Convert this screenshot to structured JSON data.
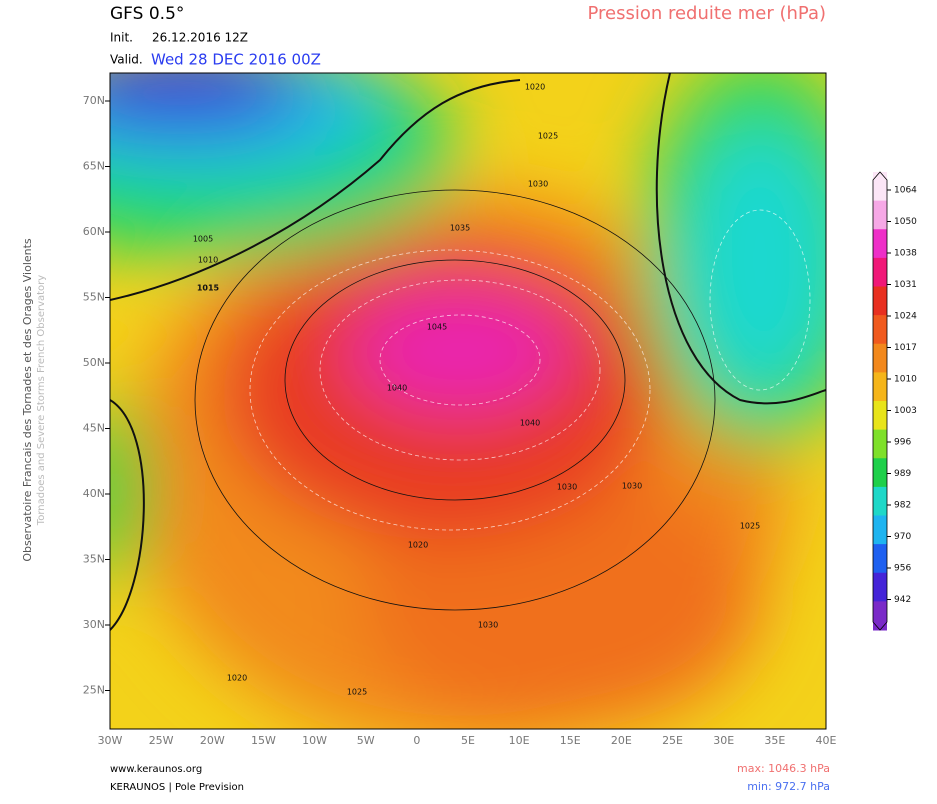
{
  "header": {
    "model": "GFS 0.5°",
    "init_label": "Init.",
    "init_value": "26.12.2016 12Z",
    "valid_label": "Valid.",
    "valid_value": "Wed 28 DEC 2016 00Z",
    "title": "Pression reduite mer (hPa)"
  },
  "side_text": {
    "main": "Observatoire Francais des Tornades et des Orages Violents",
    "sub": "Tornadoes and Severe Storms French Observatory"
  },
  "map": {
    "lat_labels": [
      "70N",
      "65N",
      "60N",
      "55N",
      "50N",
      "45N",
      "40N",
      "35N",
      "30N",
      "25N"
    ],
    "lon_labels": [
      "30W",
      "25W",
      "20W",
      "15W",
      "10W",
      "5W",
      "0",
      "5E",
      "10E",
      "15E",
      "20E",
      "25E",
      "30E",
      "35E",
      "40E"
    ],
    "contour_labels": [
      1020,
      1025,
      1030,
      1035,
      1005,
      1010,
      1015,
      1045,
      1040,
      1040,
      1030,
      1030,
      1020,
      1030,
      1025,
      1020,
      1025
    ]
  },
  "colorbar": {
    "levels": [
      1064,
      1050,
      1038,
      1031,
      1024,
      1017,
      1010,
      1003,
      996,
      989,
      982,
      970,
      956,
      942
    ],
    "colors": [
      "#fbe6f6",
      "#f6a8e6",
      "#ee2fc8",
      "#f01878",
      "#e83020",
      "#f05a1e",
      "#f2881c",
      "#f5b51a",
      "#e8e41a",
      "#7ee02a",
      "#1ed04a",
      "#1ed8c8",
      "#1eb4f0",
      "#1e60f0",
      "#4424d8",
      "#7a2ac8"
    ]
  },
  "footer": {
    "website": "www.keraunos.org",
    "credit": "KERAUNOS | Pole Prevision",
    "max": "max: 1046.3 hPa",
    "min": "min: 972.7 hPa"
  }
}
